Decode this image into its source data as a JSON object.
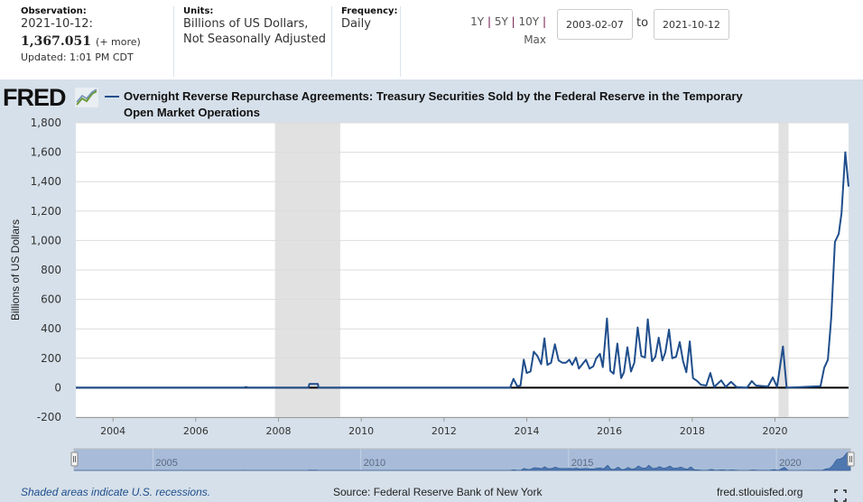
{
  "header": {
    "observation_label": "Observation:",
    "observation_date": "2021-10-12:",
    "observation_value": "1,367.051",
    "more_link": "(+ more)",
    "updated": "Updated: 1:01 PM CDT",
    "units_label": "Units:",
    "units_line1": "Billions of US Dollars,",
    "units_line2": "Not Seasonally Adjusted",
    "frequency_label": "Frequency:",
    "frequency_value": "Daily",
    "range_buttons": [
      "1Y",
      "5Y",
      "10Y",
      "Max"
    ],
    "start_date": "2003-02-07",
    "to_label": "to",
    "end_date": "2021-10-12"
  },
  "logo": "FRED",
  "footer": {
    "recession_note": "Shaded areas indicate U.S. recessions.",
    "source": "Source: Federal Reserve Bank of New York",
    "site": "fred.stlouisfed.org"
  },
  "colors": {
    "series": "#1f4e8c",
    "recession": "#e1e1e1",
    "panel": "#d6e0ea",
    "navigator": "#a8bcd9"
  },
  "chart_data": {
    "type": "line",
    "title": "Overnight Reverse Repurchase Agreements: Treasury Securities Sold by the Federal Reserve in the Temporary Open Market Operations",
    "ylabel": "Billions of US Dollars",
    "xlabel": "",
    "xlim": [
      "2003-02-07",
      "2021-10-12"
    ],
    "ylim": [
      -200,
      1800
    ],
    "yticks": [
      "-200",
      "0",
      "200",
      "400",
      "600",
      "800",
      "1,000",
      "1,200",
      "1,400",
      "1,600",
      "1,800"
    ],
    "xticks": [
      "2004",
      "2006",
      "2008",
      "2010",
      "2012",
      "2014",
      "2016",
      "2018",
      "2020"
    ],
    "navigator_ticks": [
      "2005",
      "2010",
      "2015",
      "2020"
    ],
    "grid": true,
    "recessions": [
      [
        "2007-12-01",
        "2009-06-30"
      ],
      [
        "2020-02-01",
        "2020-04-30"
      ]
    ],
    "series": [
      {
        "name": "Overnight Reverse Repurchase Agreements: Treasury Securities Sold by the Federal Reserve in the Temporary Open Market Operations",
        "points": [
          [
            "2003-02-07",
            0
          ],
          [
            "2007-03-01",
            0
          ],
          [
            "2007-03-20",
            5
          ],
          [
            "2007-04-10",
            0
          ],
          [
            "2008-09-20",
            0
          ],
          [
            "2008-10-01",
            25
          ],
          [
            "2008-12-15",
            25
          ],
          [
            "2008-12-20",
            0
          ],
          [
            "2013-08-07",
            0
          ],
          [
            "2013-09-06",
            60
          ],
          [
            "2013-10-09",
            10
          ],
          [
            "2013-11-07",
            15
          ],
          [
            "2013-12-06",
            190
          ],
          [
            "2014-01-01",
            100
          ],
          [
            "2014-02-03",
            110
          ],
          [
            "2014-03-04",
            245
          ],
          [
            "2014-04-06",
            215
          ],
          [
            "2014-05-08",
            160
          ],
          [
            "2014-06-06",
            335
          ],
          [
            "2014-07-02",
            155
          ],
          [
            "2014-08-04",
            170
          ],
          [
            "2014-09-06",
            295
          ],
          [
            "2014-10-09",
            185
          ],
          [
            "2014-11-10",
            170
          ],
          [
            "2014-12-13",
            170
          ],
          [
            "2015-01-11",
            190
          ],
          [
            "2015-02-06",
            155
          ],
          [
            "2015-03-11",
            205
          ],
          [
            "2015-04-06",
            130
          ],
          [
            "2015-06-07",
            190
          ],
          [
            "2015-07-09",
            130
          ],
          [
            "2015-08-11",
            145
          ],
          [
            "2015-09-06",
            200
          ],
          [
            "2015-10-09",
            230
          ],
          [
            "2015-11-03",
            140
          ],
          [
            "2015-12-10",
            470
          ],
          [
            "2016-01-08",
            115
          ],
          [
            "2016-02-06",
            95
          ],
          [
            "2016-03-11",
            300
          ],
          [
            "2016-04-13",
            65
          ],
          [
            "2016-05-08",
            105
          ],
          [
            "2016-06-07",
            275
          ],
          [
            "2016-07-09",
            110
          ],
          [
            "2016-08-08",
            170
          ],
          [
            "2016-09-06",
            410
          ],
          [
            "2016-10-09",
            215
          ],
          [
            "2016-11-10",
            205
          ],
          [
            "2016-12-05",
            465
          ],
          [
            "2017-01-11",
            180
          ],
          [
            "2017-02-10",
            210
          ],
          [
            "2017-03-11",
            340
          ],
          [
            "2017-04-13",
            185
          ],
          [
            "2017-05-08",
            240
          ],
          [
            "2017-06-10",
            395
          ],
          [
            "2017-07-09",
            200
          ],
          [
            "2017-08-11",
            210
          ],
          [
            "2017-09-13",
            310
          ],
          [
            "2017-10-12",
            180
          ],
          [
            "2017-11-10",
            105
          ],
          [
            "2017-12-10",
            315
          ],
          [
            "2018-01-08",
            65
          ],
          [
            "2018-02-14",
            45
          ],
          [
            "2018-03-18",
            20
          ],
          [
            "2018-05-05",
            15
          ],
          [
            "2018-06-10",
            100
          ],
          [
            "2018-07-13",
            5
          ],
          [
            "2018-09-13",
            50
          ],
          [
            "2018-10-23",
            5
          ],
          [
            "2018-12-09",
            40
          ],
          [
            "2019-01-26",
            5
          ],
          [
            "2019-04-28",
            0
          ],
          [
            "2019-06-10",
            45
          ],
          [
            "2019-07-17",
            15
          ],
          [
            "2019-10-31",
            8
          ],
          [
            "2019-12-13",
            70
          ],
          [
            "2020-01-19",
            5
          ],
          [
            "2020-03-11",
            280
          ],
          [
            "2020-04-13",
            0
          ],
          [
            "2020-12-02",
            8
          ],
          [
            "2021-02-06",
            10
          ],
          [
            "2021-03-11",
            135
          ],
          [
            "2021-04-13",
            190
          ],
          [
            "2021-05-12",
            475
          ],
          [
            "2021-06-14",
            990
          ],
          [
            "2021-07-17",
            1045
          ],
          [
            "2021-08-11",
            1185
          ],
          [
            "2021-09-13",
            1600
          ],
          [
            "2021-10-12",
            1367
          ]
        ]
      }
    ]
  }
}
